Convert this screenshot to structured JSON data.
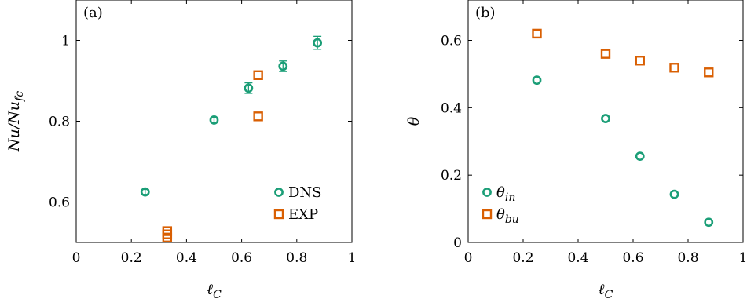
{
  "colors": {
    "teal": "#1b9e77",
    "orange": "#d95f02"
  },
  "chart_data": [
    {
      "type": "scatter",
      "panel_label": "(a)",
      "xlabel": "ℓC",
      "ylabel": "Nu/Nufc",
      "xlim": [
        0,
        1
      ],
      "ylim": [
        0.5,
        1.1
      ],
      "xticks": [
        "0",
        "0.2",
        "0.4",
        "0.6",
        "0.8",
        "1"
      ],
      "xtick_values": [
        0,
        0.2,
        0.4,
        0.6,
        0.8,
        1
      ],
      "yticks": [
        "0.6",
        "0.8",
        "1"
      ],
      "ytick_values": [
        0.6,
        0.8,
        1
      ],
      "legend_position": "bottom-right",
      "series": [
        {
          "name": "DNS",
          "marker": "circle",
          "color": "#1b9e77",
          "x": [
            0.25,
            0.5,
            0.625,
            0.75,
            0.875
          ],
          "y": [
            0.625,
            0.803,
            0.882,
            0.936,
            0.994
          ],
          "err": [
            0.006,
            0.006,
            0.013,
            0.013,
            0.016
          ]
        },
        {
          "name": "EXP",
          "marker": "square",
          "color": "#d95f02",
          "x": [
            0.33,
            0.33,
            0.33,
            0.66,
            0.66
          ],
          "y": [
            0.512,
            0.52,
            0.528,
            0.812,
            0.914
          ],
          "err": [
            0,
            0,
            0,
            0,
            0
          ]
        }
      ]
    },
    {
      "type": "scatter",
      "panel_label": "(b)",
      "xlabel": "ℓC",
      "ylabel": "θ",
      "xlim": [
        0,
        1
      ],
      "ylim": [
        0,
        0.72
      ],
      "xticks": [
        "0",
        "0.2",
        "0.4",
        "0.6",
        "0.8",
        "1"
      ],
      "xtick_values": [
        0,
        0.2,
        0.4,
        0.6,
        0.8,
        1
      ],
      "yticks": [
        "0",
        "0.2",
        "0.4",
        "0.6"
      ],
      "ytick_values": [
        0,
        0.2,
        0.4,
        0.6
      ],
      "legend_position": "bottom-left",
      "series": [
        {
          "name": "θin",
          "marker": "circle",
          "color": "#1b9e77",
          "x": [
            0.25,
            0.5,
            0.625,
            0.75,
            0.875
          ],
          "y": [
            0.482,
            0.368,
            0.256,
            0.143,
            0.06
          ],
          "err": [
            0,
            0,
            0,
            0,
            0
          ]
        },
        {
          "name": "θbu",
          "marker": "square",
          "color": "#d95f02",
          "x": [
            0.25,
            0.5,
            0.625,
            0.75,
            0.875
          ],
          "y": [
            0.62,
            0.56,
            0.54,
            0.519,
            0.505
          ],
          "err": [
            0,
            0,
            0,
            0,
            0
          ]
        }
      ]
    }
  ]
}
